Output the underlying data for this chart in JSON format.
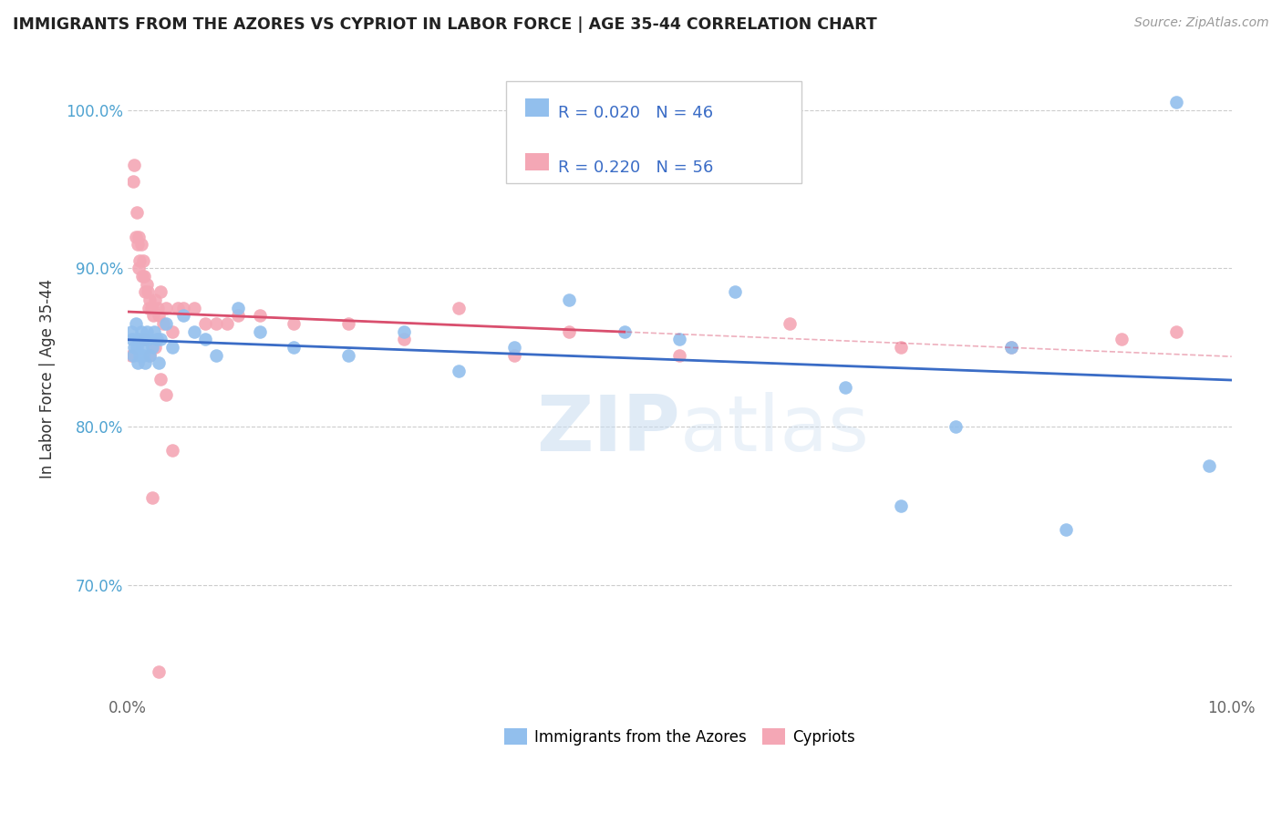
{
  "title": "IMMIGRANTS FROM THE AZORES VS CYPRIOT IN LABOR FORCE | AGE 35-44 CORRELATION CHART",
  "source": "Source: ZipAtlas.com",
  "ylabel": "In Labor Force | Age 35-44",
  "xlim": [
    0.0,
    10.0
  ],
  "ylim": [
    63.0,
    103.0
  ],
  "yticks": [
    70.0,
    80.0,
    90.0,
    100.0
  ],
  "legend_r_azores": "R = 0.020",
  "legend_n_azores": "N = 46",
  "legend_r_cypriot": "R = 0.220",
  "legend_n_cypriot": "N = 56",
  "blue_color": "#92BFED",
  "pink_color": "#F4A7B5",
  "blue_line_color": "#3A6CC6",
  "pink_line_color": "#D94F6E",
  "watermark_color": "#C8DCF0",
  "azores_x": [
    0.03,
    0.04,
    0.05,
    0.06,
    0.07,
    0.08,
    0.09,
    0.1,
    0.11,
    0.12,
    0.13,
    0.14,
    0.15,
    0.16,
    0.17,
    0.18,
    0.2,
    0.22,
    0.24,
    0.26,
    0.28,
    0.3,
    0.35,
    0.4,
    0.5,
    0.6,
    0.7,
    0.8,
    1.0,
    1.2,
    1.5,
    2.0,
    2.5,
    3.0,
    3.5,
    4.0,
    4.5,
    5.0,
    5.5,
    6.5,
    7.0,
    7.5,
    8.0,
    8.5,
    9.5,
    9.8
  ],
  "azores_y": [
    86.0,
    85.5,
    84.5,
    85.0,
    86.5,
    85.0,
    84.0,
    85.5,
    84.5,
    86.0,
    85.0,
    84.5,
    85.5,
    84.0,
    86.0,
    85.5,
    84.5,
    85.0,
    86.0,
    85.5,
    84.0,
    85.5,
    86.5,
    85.0,
    87.0,
    86.0,
    85.5,
    84.5,
    87.5,
    86.0,
    85.0,
    84.5,
    86.0,
    83.5,
    85.0,
    88.0,
    86.0,
    85.5,
    88.5,
    82.5,
    75.0,
    80.0,
    85.0,
    73.5,
    100.5,
    77.5
  ],
  "cypriot_x": [
    0.03,
    0.05,
    0.06,
    0.07,
    0.08,
    0.09,
    0.1,
    0.1,
    0.11,
    0.12,
    0.13,
    0.14,
    0.15,
    0.16,
    0.17,
    0.18,
    0.19,
    0.2,
    0.21,
    0.22,
    0.23,
    0.25,
    0.27,
    0.28,
    0.3,
    0.32,
    0.35,
    0.4,
    0.45,
    0.5,
    0.6,
    0.7,
    0.8,
    0.9,
    1.0,
    1.2,
    1.5,
    2.0,
    2.5,
    3.0,
    3.5,
    4.0,
    5.0,
    6.0,
    7.0,
    8.0,
    9.0,
    9.5,
    0.15,
    0.2,
    0.25,
    0.3,
    0.35,
    0.4,
    0.22,
    0.28
  ],
  "cypriot_y": [
    84.5,
    95.5,
    96.5,
    92.0,
    93.5,
    91.5,
    92.0,
    90.0,
    90.5,
    91.5,
    89.5,
    90.5,
    89.5,
    88.5,
    89.0,
    88.5,
    87.5,
    88.0,
    87.5,
    87.5,
    87.0,
    88.0,
    87.5,
    87.0,
    88.5,
    86.5,
    87.5,
    86.0,
    87.5,
    87.5,
    87.5,
    86.5,
    86.5,
    86.5,
    87.0,
    87.0,
    86.5,
    86.5,
    85.5,
    87.5,
    84.5,
    86.0,
    84.5,
    86.5,
    85.0,
    85.0,
    85.5,
    86.0,
    85.5,
    84.5,
    85.0,
    83.0,
    82.0,
    78.5,
    75.5,
    64.5
  ]
}
